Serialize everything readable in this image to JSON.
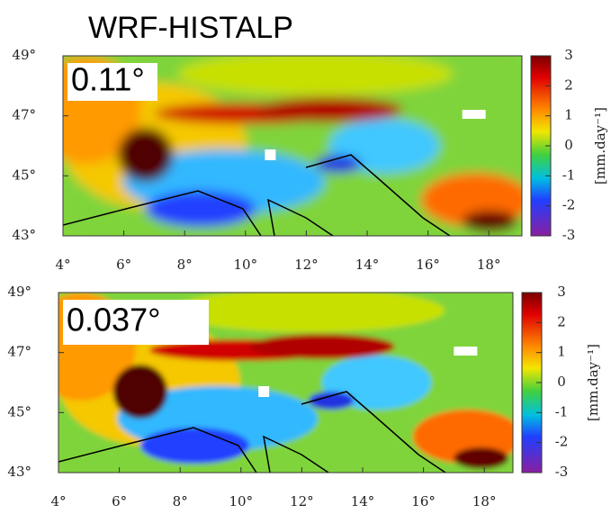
{
  "title": "WRF-HISTALP",
  "panels": [
    {
      "label": "0.11°",
      "lat_ticks": [
        "49°",
        "47°",
        "45°",
        "43°"
      ],
      "lon_ticks": [
        "4°",
        "6°",
        "8°",
        "10°",
        "12°",
        "14°",
        "16°",
        "18°"
      ],
      "colorbar": {
        "ticks": [
          "3",
          "2",
          "1",
          "0",
          "-1",
          "-2",
          "-3"
        ],
        "label": "[mm.day⁻¹]"
      }
    },
    {
      "label": "0.037°",
      "lat_ticks": [
        "49°",
        "47°",
        "45°",
        "43°"
      ],
      "lon_ticks": [
        "4°",
        "6°",
        "8°",
        "10°",
        "12°",
        "14°",
        "16°",
        "18°"
      ],
      "colorbar": {
        "ticks": [
          "3",
          "2",
          "1",
          "0",
          "-1",
          "-2",
          "-3"
        ],
        "label": "[mm.day⁻¹]"
      }
    }
  ]
}
